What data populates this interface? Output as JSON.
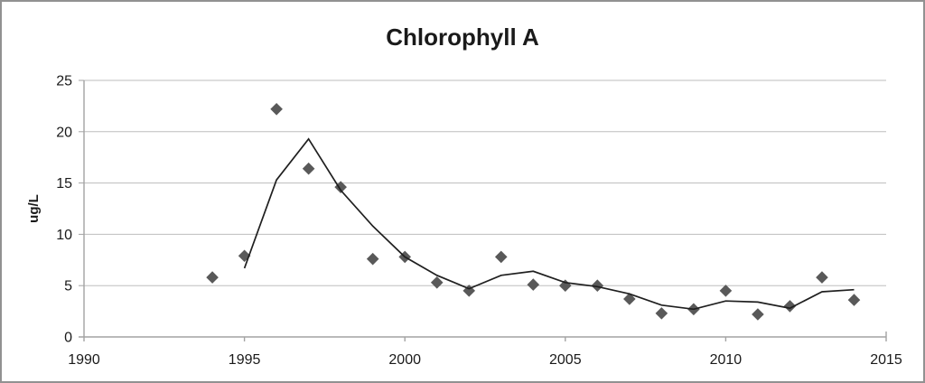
{
  "window": {
    "background": "#ffffff",
    "border_color": "#919191"
  },
  "chart_data": {
    "type": "scatter",
    "title": "Chlorophyll A",
    "ylabel": "ug/L",
    "xlabel": "",
    "xlim": [
      1990,
      2015
    ],
    "ylim": [
      0,
      25
    ],
    "xticks": [
      1990,
      1995,
      2000,
      2005,
      2010,
      2015
    ],
    "yticks": [
      0,
      5,
      10,
      15,
      20,
      25
    ],
    "grid": "horizontal-only",
    "legend": "none",
    "colors": {
      "marker": "#595959",
      "line": "#1f1f1f",
      "grid": "#bdbdbd",
      "axis": "#a3a3a3",
      "text": "#1a1a1a"
    },
    "series": [
      {
        "name": "annual-observations",
        "type": "scatter",
        "marker": "diamond",
        "color": "#595959",
        "x": [
          1994,
          1995,
          1996,
          1997,
          1998,
          1999,
          2000,
          2001,
          2002,
          2003,
          2004,
          2005,
          2006,
          2007,
          2008,
          2009,
          2010,
          2011,
          2012,
          2013,
          2014
        ],
        "y": [
          5.8,
          7.9,
          22.2,
          16.4,
          14.6,
          7.6,
          7.8,
          5.3,
          4.5,
          7.8,
          5.1,
          5.0,
          5.0,
          3.7,
          2.3,
          2.7,
          4.5,
          2.2,
          3.0,
          5.8,
          3.6
        ]
      },
      {
        "name": "trend-line",
        "type": "line",
        "color": "#1f1f1f",
        "x": [
          1995,
          1996,
          1997,
          1998,
          1999,
          2000,
          2001,
          2002,
          2003,
          2004,
          2005,
          2006,
          2007,
          2008,
          2009,
          2010,
          2011,
          2012,
          2013,
          2014
        ],
        "y": [
          6.7,
          15.3,
          19.3,
          14.3,
          10.8,
          7.8,
          6.0,
          4.7,
          6.0,
          6.4,
          5.3,
          4.9,
          4.2,
          3.1,
          2.7,
          3.5,
          3.4,
          2.8,
          4.4,
          4.6
        ]
      }
    ]
  }
}
